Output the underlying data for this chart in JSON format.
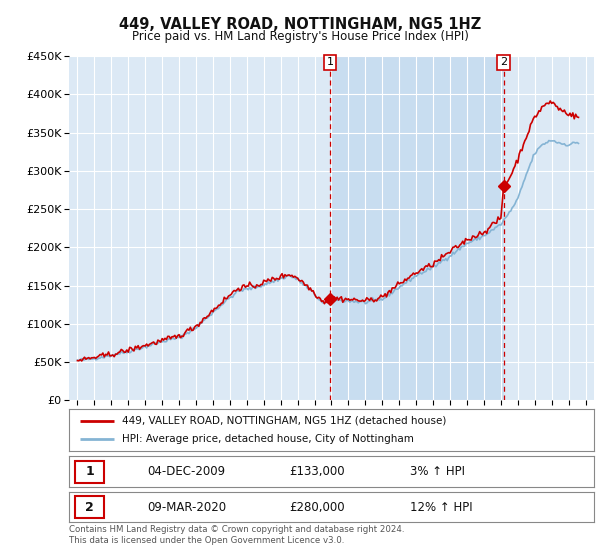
{
  "title": "449, VALLEY ROAD, NOTTINGHAM, NG5 1HZ",
  "subtitle": "Price paid vs. HM Land Registry's House Price Index (HPI)",
  "background_color": "#ffffff",
  "plot_bg_color": "#dce9f5",
  "plot_bg_highlight": "#c8ddf0",
  "grid_color": "#ffffff",
  "red_line_color": "#cc0000",
  "blue_line_color": "#85b4d4",
  "marker1_x": 2009.917,
  "marker1_y": 133000,
  "marker2_x": 2020.167,
  "marker2_y": 280000,
  "marker_line_color": "#cc0000",
  "legend_line1": "449, VALLEY ROAD, NOTTINGHAM, NG5 1HZ (detached house)",
  "legend_line2": "HPI: Average price, detached house, City of Nottingham",
  "info1_date": "04-DEC-2009",
  "info1_price": "£133,000",
  "info1_hpi": "3% ↑ HPI",
  "info2_date": "09-MAR-2020",
  "info2_price": "£280,000",
  "info2_hpi": "12% ↑ HPI",
  "footer": "Contains HM Land Registry data © Crown copyright and database right 2024.\nThis data is licensed under the Open Government Licence v3.0.",
  "ylim": [
    0,
    450000
  ],
  "yticks": [
    0,
    50000,
    100000,
    150000,
    200000,
    250000,
    300000,
    350000,
    400000,
    450000
  ],
  "ytick_labels": [
    "£0",
    "£50K",
    "£100K",
    "£150K",
    "£200K",
    "£250K",
    "£300K",
    "£350K",
    "£400K",
    "£450K"
  ],
  "xlim": [
    1994.5,
    2025.5
  ]
}
